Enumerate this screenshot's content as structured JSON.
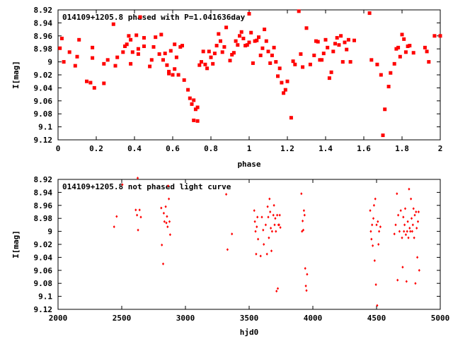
{
  "chart_data": [
    {
      "type": "scatter",
      "title": "014109+1205.8 phased with P=1.041636day",
      "xlabel": "phase",
      "ylabel": "I[mag]",
      "xlim": [
        0,
        2
      ],
      "ylim": [
        9.12,
        8.92
      ],
      "y_inverted": true,
      "xticks": [
        "0",
        "0.2",
        "0.4",
        "0.6",
        "0.8",
        "1",
        "1.2",
        "1.4",
        "1.6",
        "1.8",
        "2"
      ],
      "yticks": [
        "8.92",
        "8.94",
        "8.96",
        "8.98",
        "9",
        "9.02",
        "9.04",
        "9.06",
        "9.08",
        "9.1",
        "9.12"
      ],
      "marker_color": "#ff0000",
      "marker": "square",
      "points": [
        [
          0.01,
          8.979
        ],
        [
          0.02,
          8.964
        ],
        [
          0.03,
          9.0
        ],
        [
          0.06,
          8.985
        ],
        [
          0.09,
          9.006
        ],
        [
          0.1,
          8.992
        ],
        [
          0.11,
          8.966
        ],
        [
          0.15,
          9.03
        ],
        [
          0.17,
          9.032
        ],
        [
          0.18,
          8.978
        ],
        [
          0.18,
          8.994
        ],
        [
          0.19,
          9.04
        ],
        [
          0.24,
          9.033
        ],
        [
          0.24,
          9.003
        ],
        [
          0.26,
          8.997
        ],
        [
          0.29,
          8.942
        ],
        [
          0.3,
          9.006
        ],
        [
          0.31,
          8.993
        ],
        [
          0.34,
          8.985
        ],
        [
          0.35,
          8.976
        ],
        [
          0.36,
          8.973
        ],
        [
          0.37,
          8.96
        ],
        [
          0.38,
          8.966
        ],
        [
          0.38,
          9.003
        ],
        [
          0.39,
          8.985
        ],
        [
          0.41,
          8.959
        ],
        [
          0.42,
          8.98
        ],
        [
          0.42,
          8.988
        ],
        [
          0.43,
          8.931
        ],
        [
          0.45,
          8.963
        ],
        [
          0.45,
          8.976
        ],
        [
          0.48,
          9.007
        ],
        [
          0.49,
          8.997
        ],
        [
          0.5,
          8.977
        ],
        [
          0.51,
          8.962
        ],
        [
          0.53,
          8.988
        ],
        [
          0.54,
          8.958
        ],
        [
          0.55,
          8.997
        ],
        [
          0.56,
          8.987
        ],
        [
          0.57,
          9.005
        ],
        [
          0.58,
          9.015
        ],
        [
          0.58,
          9.018
        ],
        [
          0.59,
          8.983
        ],
        [
          0.6,
          9.02
        ],
        [
          0.61,
          9.011
        ],
        [
          0.61,
          8.973
        ],
        [
          0.62,
          8.993
        ],
        [
          0.63,
          9.02
        ],
        [
          0.64,
          8.977
        ],
        [
          0.65,
          8.975
        ],
        [
          0.66,
          9.028
        ],
        [
          0.68,
          9.043
        ],
        [
          0.69,
          9.056
        ],
        [
          0.7,
          9.065
        ],
        [
          0.71,
          9.059
        ],
        [
          0.71,
          9.09
        ],
        [
          0.72,
          9.073
        ],
        [
          0.73,
          9.07
        ],
        [
          0.73,
          9.091
        ],
        [
          0.74,
          9.005
        ],
        [
          0.75,
          9.0
        ],
        [
          0.76,
          8.984
        ],
        [
          0.77,
          9.004
        ],
        [
          0.78,
          9.01
        ],
        [
          0.79,
          8.984
        ],
        [
          0.8,
          8.993
        ],
        [
          0.81,
          9.003
        ],
        [
          0.82,
          8.987
        ],
        [
          0.83,
          8.975
        ],
        [
          0.84,
          8.957
        ],
        [
          0.85,
          8.968
        ],
        [
          0.86,
          8.985
        ],
        [
          0.87,
          8.977
        ],
        [
          0.88,
          8.947
        ],
        [
          0.9,
          8.998
        ],
        [
          0.91,
          8.989
        ],
        [
          0.92,
          8.986
        ],
        [
          0.93,
          8.968
        ],
        [
          0.94,
          8.974
        ],
        [
          0.95,
          8.96
        ],
        [
          0.96,
          8.954
        ],
        [
          0.97,
          8.964
        ],
        [
          0.98,
          8.975
        ],
        [
          0.99,
          8.974
        ],
        [
          1.0,
          8.926
        ],
        [
          1.0,
          8.97
        ],
        [
          1.01,
          8.955
        ],
        [
          1.02,
          9.002
        ],
        [
          1.03,
          8.968
        ],
        [
          1.04,
          8.967
        ],
        [
          1.05,
          8.962
        ],
        [
          1.06,
          8.99
        ],
        [
          1.07,
          8.979
        ],
        [
          1.08,
          8.95
        ],
        [
          1.09,
          8.968
        ],
        [
          1.1,
          8.984
        ],
        [
          1.11,
          9.002
        ],
        [
          1.12,
          8.99
        ],
        [
          1.13,
          8.978
        ],
        [
          1.14,
          9.0
        ],
        [
          1.15,
          9.022
        ],
        [
          1.16,
          9.01
        ],
        [
          1.17,
          9.032
        ],
        [
          1.18,
          9.048
        ],
        [
          1.19,
          9.043
        ],
        [
          1.2,
          9.03
        ],
        [
          1.22,
          9.086
        ],
        [
          1.23,
          8.999
        ],
        [
          1.24,
          9.004
        ],
        [
          1.26,
          8.922
        ],
        [
          1.27,
          8.988
        ],
        [
          1.28,
          9.008
        ],
        [
          1.3,
          8.948
        ],
        [
          1.32,
          9.004
        ],
        [
          1.34,
          8.99
        ],
        [
          1.35,
          8.968
        ],
        [
          1.36,
          8.969
        ],
        [
          1.37,
          8.997
        ],
        [
          1.38,
          8.997
        ],
        [
          1.39,
          8.987
        ],
        [
          1.4,
          8.966
        ],
        [
          1.41,
          8.978
        ],
        [
          1.42,
          9.025
        ],
        [
          1.43,
          9.016
        ],
        [
          1.44,
          8.984
        ],
        [
          1.45,
          8.972
        ],
        [
          1.46,
          8.963
        ],
        [
          1.47,
          8.974
        ],
        [
          1.48,
          8.96
        ],
        [
          1.49,
          9.0
        ],
        [
          1.5,
          8.97
        ],
        [
          1.51,
          8.981
        ],
        [
          1.52,
          8.966
        ],
        [
          1.53,
          9.0
        ],
        [
          1.55,
          8.967
        ],
        [
          1.63,
          8.925
        ],
        [
          1.64,
          8.997
        ],
        [
          1.67,
          9.004
        ],
        [
          1.69,
          9.02
        ],
        [
          1.7,
          9.113
        ],
        [
          1.71,
          9.073
        ],
        [
          1.73,
          9.038
        ],
        [
          1.74,
          9.017
        ],
        [
          1.76,
          9.003
        ],
        [
          1.77,
          8.98
        ],
        [
          1.78,
          8.978
        ],
        [
          1.79,
          8.992
        ],
        [
          1.8,
          8.958
        ],
        [
          1.81,
          8.965
        ],
        [
          1.82,
          8.985
        ],
        [
          1.83,
          8.976
        ],
        [
          1.84,
          8.975
        ],
        [
          1.86,
          8.986
        ],
        [
          1.92,
          8.978
        ],
        [
          1.93,
          8.984
        ],
        [
          1.94,
          9.0
        ],
        [
          1.97,
          8.96
        ],
        [
          2.0,
          8.96
        ]
      ]
    },
    {
      "type": "scatter",
      "title": "014109+1205.8 not phased light curve",
      "xlabel": "hjd0",
      "ylabel": "I[mag]",
      "xlim": [
        2000,
        5000
      ],
      "ylim": [
        9.12,
        8.92
      ],
      "y_inverted": true,
      "xticks": [
        "2000",
        "2500",
        "3000",
        "3500",
        "4000",
        "4500",
        "5000"
      ],
      "yticks": [
        "8.92",
        "8.94",
        "8.96",
        "8.98",
        "9",
        "9.02",
        "9.04",
        "9.06",
        "9.08",
        "9.1",
        "9.12"
      ],
      "marker_color": "#ff0000",
      "marker": "diamond",
      "points": [
        [
          2440,
          8.993
        ],
        [
          2460,
          8.977
        ],
        [
          2505,
          8.928
        ],
        [
          2610,
          8.967
        ],
        [
          2620,
          8.975
        ],
        [
          2625,
          8.918
        ],
        [
          2628,
          8.998
        ],
        [
          2640,
          8.967
        ],
        [
          2650,
          8.978
        ],
        [
          2810,
          8.964
        ],
        [
          2815,
          9.021
        ],
        [
          2825,
          9.05
        ],
        [
          2830,
          8.972
        ],
        [
          2835,
          8.985
        ],
        [
          2845,
          8.962
        ],
        [
          2850,
          8.987
        ],
        [
          2855,
          8.977
        ],
        [
          2860,
          8.993
        ],
        [
          2865,
          8.93
        ],
        [
          2870,
          8.95
        ],
        [
          2875,
          8.985
        ],
        [
          2880,
          9.005
        ],
        [
          3320,
          8.943
        ],
        [
          3330,
          9.028
        ],
        [
          3365,
          9.004
        ],
        [
          3540,
          8.968
        ],
        [
          3545,
          8.985
        ],
        [
          3550,
          9.0
        ],
        [
          3555,
          9.035
        ],
        [
          3560,
          8.993
        ],
        [
          3565,
          8.978
        ],
        [
          3570,
          9.012
        ],
        [
          3590,
          9.038
        ],
        [
          3600,
          8.978
        ],
        [
          3610,
          8.998
        ],
        [
          3615,
          9.02
        ],
        [
          3630,
          8.99
        ],
        [
          3640,
          9.035
        ],
        [
          3645,
          8.962
        ],
        [
          3650,
          8.978
        ],
        [
          3655,
          9.01
        ],
        [
          3660,
          8.95
        ],
        [
          3665,
          8.97
        ],
        [
          3670,
          8.995
        ],
        [
          3675,
          9.03
        ],
        [
          3680,
          9.0
        ],
        [
          3690,
          8.975
        ],
        [
          3695,
          8.96
        ],
        [
          3700,
          8.99
        ],
        [
          3705,
          8.98
        ],
        [
          3710,
          9.0
        ],
        [
          3715,
          9.092
        ],
        [
          3720,
          8.975
        ],
        [
          3725,
          9.088
        ],
        [
          3730,
          8.99
        ],
        [
          3735,
          8.99
        ],
        [
          3740,
          8.975
        ],
        [
          3745,
          8.994
        ],
        [
          3910,
          8.942
        ],
        [
          3915,
          9.0
        ],
        [
          3920,
          8.984
        ],
        [
          3925,
          8.998
        ],
        [
          3930,
          8.968
        ],
        [
          3935,
          8.975
        ],
        [
          3940,
          9.057
        ],
        [
          3945,
          9.084
        ],
        [
          3950,
          9.091
        ],
        [
          3955,
          9.066
        ],
        [
          4450,
          8.968
        ],
        [
          4455,
          9.0
        ],
        [
          4460,
          9.012
        ],
        [
          4465,
          8.99
        ],
        [
          4470,
          9.022
        ],
        [
          4475,
          8.98
        ],
        [
          4480,
          8.96
        ],
        [
          4485,
          9.045
        ],
        [
          4490,
          8.95
        ],
        [
          4495,
          9.082
        ],
        [
          4500,
          8.99
        ],
        [
          4505,
          9.114
        ],
        [
          4510,
          8.985
        ],
        [
          4515,
          9.02
        ],
        [
          4520,
          9.0
        ],
        [
          4530,
          8.993
        ],
        [
          4640,
          9.004
        ],
        [
          4650,
          8.99
        ],
        [
          4660,
          8.942
        ],
        [
          4665,
          9.075
        ],
        [
          4670,
          8.975
        ],
        [
          4680,
          9.0
        ],
        [
          4690,
          8.968
        ],
        [
          4700,
          9.01
        ],
        [
          4705,
          9.055
        ],
        [
          4710,
          8.978
        ],
        [
          4715,
          9.0
        ],
        [
          4720,
          8.99
        ],
        [
          4725,
          8.965
        ],
        [
          4730,
          9.005
        ],
        [
          4735,
          9.077
        ],
        [
          4740,
          9.0
        ],
        [
          4745,
          8.985
        ],
        [
          4750,
          9.01
        ],
        [
          4755,
          8.935
        ],
        [
          4760,
          8.995
        ],
        [
          4765,
          9.0
        ],
        [
          4770,
          8.95
        ],
        [
          4775,
          8.98
        ],
        [
          4780,
          9.0
        ],
        [
          4785,
          8.99
        ],
        [
          4790,
          8.965
        ],
        [
          4795,
          9.01
        ],
        [
          4800,
          8.975
        ],
        [
          4805,
          9.08
        ],
        [
          4810,
          8.97
        ],
        [
          4815,
          8.995
        ],
        [
          4820,
          9.04
        ],
        [
          4825,
          8.985
        ],
        [
          4830,
          8.97
        ],
        [
          4835,
          9.06
        ]
      ]
    }
  ]
}
